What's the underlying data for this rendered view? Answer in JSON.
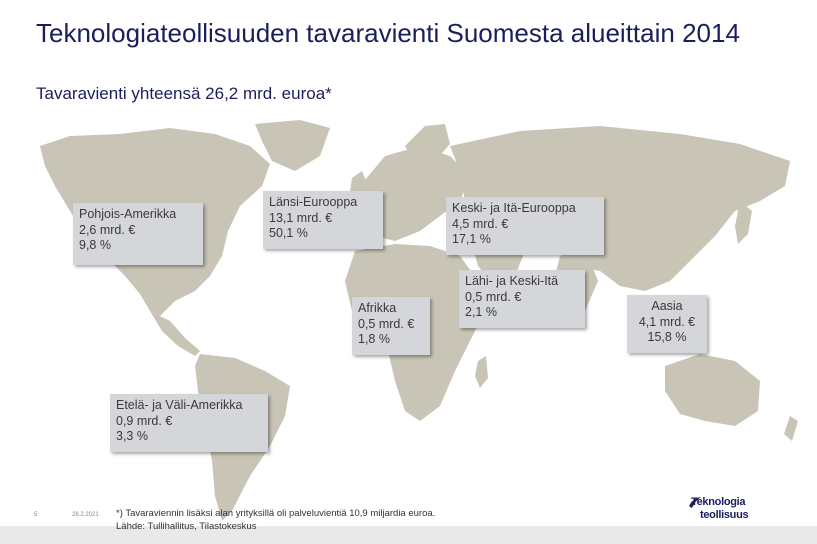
{
  "title": "Teknologiateollisuuden tavaravienti Suomesta alueittain 2014",
  "subtitle": "Tavaravienti yhteensä 26,2 mrd. euroa*",
  "regions": {
    "north_america": {
      "name": "Pohjois-Amerikka",
      "amount": "2,6 mrd. €",
      "share": "9,8 %"
    },
    "western_europe": {
      "name": "Länsi-Eurooppa",
      "amount": "13,1 mrd. €",
      "share": "50,1 %"
    },
    "central_eastern_europe": {
      "name": "Keski- ja Itä-Eurooppa",
      "amount": "4,5 mrd. €",
      "share": "17,1 %"
    },
    "africa": {
      "name": "Afrikka",
      "amount": "0,5 mrd. €",
      "share": "1,8 %"
    },
    "middle_east": {
      "name": "Lähi- ja Keski-Itä",
      "amount": "0,5 mrd. €",
      "share": "2,1 %"
    },
    "asia": {
      "name": "Aasia",
      "amount": "4,1 mrd. €",
      "share": "15,8 %"
    },
    "latin_america": {
      "name": "Etelä- ja Väli-Amerikka",
      "amount": "0,9 mrd. €",
      "share": "3,3 %"
    }
  },
  "footer": {
    "page": "5",
    "date": "28.2.2021",
    "note": "*) Tavaraviennin lisäksi alan yrityksillä oli palveluvientiä 10,9 miljardia euroa.",
    "source": "Lähde: Tullihallitus, Tilastokeskus"
  },
  "logo": {
    "line1": "Teknologia",
    "line2": "teollisuus"
  },
  "colors": {
    "title": "#1a1f5c",
    "land": "#c8c4b6",
    "box": "#d4d6da"
  }
}
